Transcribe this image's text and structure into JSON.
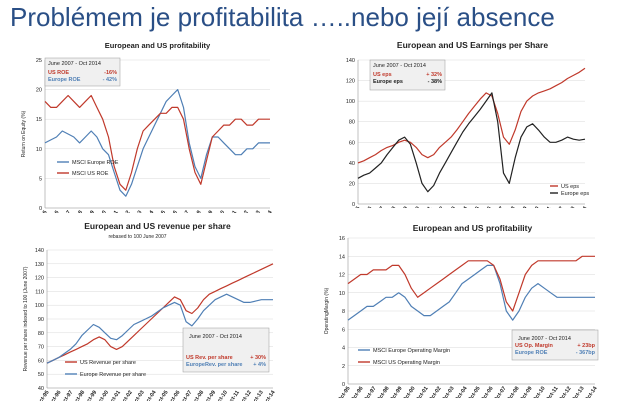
{
  "slide": {
    "title": "Problémem je profitabilita …..nebo její absence"
  },
  "colors": {
    "red": "#c0392b",
    "blue": "#4f7fb5",
    "dark": "#222222",
    "panel_bg": "#f0f0f0",
    "text": "#222222"
  },
  "chart_data": [
    {
      "type": "line",
      "title": "European and US profitability",
      "subtitle": "",
      "xlabel": "",
      "ylabel": "Return on Equity (%)",
      "ylim": [
        0,
        25
      ],
      "yticks": [
        0,
        5,
        10,
        15,
        20,
        25
      ],
      "x": [
        0,
        1,
        2,
        3,
        4,
        5,
        6,
        7,
        8,
        9,
        10,
        11,
        12,
        13,
        14,
        15,
        16,
        17,
        18,
        19,
        20,
        21,
        22,
        23,
        24,
        25,
        26,
        27,
        28,
        29,
        30,
        31,
        32,
        33,
        34,
        35,
        36,
        37,
        38,
        39
      ],
      "xticklabels": [
        "Oct-95",
        "Oct-96",
        "Oct-97",
        "Oct-98",
        "Oct-99",
        "Oct-00",
        "Oct-01",
        "Oct-02",
        "Oct-03",
        "Oct-04",
        "Oct-05",
        "Oct-06",
        "Oct-07",
        "Oct-08",
        "Oct-09",
        "Oct-10",
        "Oct-11",
        "Oct-12",
        "Oct-13",
        "Oct-14"
      ],
      "series": [
        {
          "name": "MSCI Europe ROE",
          "color": "blue",
          "values": [
            11,
            11.5,
            12,
            13,
            12.5,
            12,
            11,
            12,
            13,
            12,
            10,
            9,
            6,
            3,
            2,
            4,
            7,
            10,
            12,
            14,
            16,
            18,
            19,
            20,
            17,
            11,
            7,
            5,
            9,
            12,
            12,
            11,
            10,
            9,
            9,
            10,
            10,
            11,
            11,
            11
          ]
        },
        {
          "name": "MSCI US ROE",
          "color": "red",
          "values": [
            18,
            17,
            17,
            18,
            19,
            18,
            17,
            18,
            19,
            17,
            15,
            12,
            7,
            4,
            3,
            6,
            10,
            13,
            14,
            15,
            16,
            16,
            17,
            17,
            15,
            10,
            6,
            4,
            8,
            12,
            13,
            14,
            14,
            15,
            15,
            14,
            14,
            15,
            15,
            15
          ]
        }
      ],
      "annotation": {
        "period": "June 2007 - Oct 2014",
        "rows": [
          {
            "label": "US ROE",
            "value": "-16%",
            "color": "red"
          },
          {
            "label": "Europe ROE",
            "value": "- 42%",
            "color": "blue"
          }
        ]
      }
    },
    {
      "type": "line",
      "title": "European and US Earnings per Share",
      "subtitle": "",
      "xlabel": "",
      "ylabel": "",
      "ylim": [
        0,
        140
      ],
      "yticks": [
        0,
        20,
        40,
        60,
        80,
        100,
        120,
        140
      ],
      "x": [
        0,
        1,
        2,
        3,
        4,
        5,
        6,
        7,
        8,
        9,
        10,
        11,
        12,
        13,
        14,
        15,
        16,
        17,
        18,
        19,
        20,
        21,
        22,
        23,
        24,
        25,
        26,
        27,
        28,
        29,
        30,
        31,
        32,
        33,
        34,
        35,
        36,
        37,
        38,
        39
      ],
      "xticklabels": [
        "Oct-95",
        "Oct-96",
        "Oct-97",
        "Oct-98",
        "Oct-99",
        "Oct-00",
        "Oct-01",
        "Oct-02",
        "Oct-03",
        "Oct-04",
        "Oct-05",
        "Oct-06",
        "Oct-07",
        "Oct-08",
        "Oct-09",
        "Oct-10",
        "Oct-11",
        "Oct-12",
        "Oct-13",
        "Oct-14"
      ],
      "series": [
        {
          "name": "US eps",
          "color": "red",
          "values": [
            40,
            42,
            45,
            48,
            52,
            55,
            57,
            60,
            62,
            60,
            55,
            48,
            45,
            48,
            55,
            60,
            65,
            72,
            80,
            88,
            95,
            102,
            108,
            105,
            88,
            65,
            58,
            72,
            90,
            100,
            105,
            108,
            110,
            112,
            115,
            118,
            122,
            125,
            128,
            132
          ]
        },
        {
          "name": "Europe eps",
          "color": "dark",
          "values": [
            25,
            28,
            30,
            35,
            40,
            48,
            55,
            62,
            65,
            58,
            40,
            20,
            12,
            18,
            30,
            40,
            50,
            60,
            70,
            78,
            85,
            92,
            100,
            108,
            80,
            30,
            20,
            45,
            65,
            75,
            78,
            72,
            65,
            60,
            60,
            62,
            65,
            63,
            62,
            63
          ]
        }
      ],
      "annotation": {
        "period": "June 2007 - Oct 2014",
        "rows": [
          {
            "label": "US eps",
            "value": "+ 32%",
            "color": "red"
          },
          {
            "label": "Europe eps",
            "value": "- 38%",
            "color": "dark"
          }
        ]
      }
    },
    {
      "type": "line",
      "title": "European and US revenue per share",
      "subtitle": "rebased to 100 June 2007",
      "xlabel": "",
      "ylabel": "Revenue per share indexed to 100 (June 2007)",
      "ylim": [
        40,
        140
      ],
      "yticks": [
        40,
        50,
        60,
        70,
        80,
        90,
        100,
        110,
        120,
        130,
        140
      ],
      "x": [
        0,
        1,
        2,
        3,
        4,
        5,
        6,
        7,
        8,
        9,
        10,
        11,
        12,
        13,
        14,
        15,
        16,
        17,
        18,
        19,
        20,
        21,
        22,
        23,
        24,
        25,
        26,
        27,
        28,
        29,
        30,
        31,
        32,
        33,
        34,
        35,
        36,
        37,
        38,
        39
      ],
      "xticklabels": [
        "Oct-95",
        "Oct-96",
        "Oct-97",
        "Oct-98",
        "Oct-99",
        "Oct-00",
        "Oct-01",
        "Oct-02",
        "Oct-03",
        "Oct-04",
        "Oct-05",
        "Oct-06",
        "Oct-07",
        "Oct-08",
        "Oct-09",
        "Oct-10",
        "Oct-11",
        "Oct-12",
        "Oct-13",
        "Oct-14"
      ],
      "series": [
        {
          "name": "US Revenue per share",
          "color": "red",
          "values": [
            58,
            60,
            62,
            64,
            66,
            68,
            70,
            72,
            75,
            77,
            75,
            70,
            68,
            70,
            74,
            78,
            82,
            86,
            90,
            94,
            98,
            102,
            106,
            104,
            96,
            94,
            98,
            104,
            108,
            110,
            112,
            114,
            116,
            118,
            120,
            122,
            124,
            126,
            128,
            130
          ]
        },
        {
          "name": "Europe Revenue per share",
          "color": "blue",
          "values": [
            58,
            60,
            62,
            65,
            68,
            72,
            78,
            82,
            86,
            84,
            80,
            76,
            75,
            78,
            82,
            86,
            88,
            90,
            92,
            95,
            98,
            100,
            102,
            100,
            88,
            85,
            90,
            96,
            100,
            104,
            106,
            108,
            106,
            104,
            102,
            102,
            103,
            104,
            104,
            104
          ]
        }
      ],
      "annotation": {
        "period": "June 2007 - Oct 2014",
        "rows": [
          {
            "label": "US Rev. per share",
            "value": "+ 30%",
            "color": "red"
          },
          {
            "label": "EuropeRev. per share",
            "value": "+ 4%",
            "color": "blue"
          }
        ]
      }
    },
    {
      "type": "line",
      "title": "European and US profitability",
      "subtitle": "",
      "xlabel": "",
      "ylabel": "OperatingMargin (%)",
      "ylim": [
        0,
        16
      ],
      "yticks": [
        0,
        2,
        4,
        6,
        8,
        10,
        12,
        14,
        16
      ],
      "x": [
        0,
        1,
        2,
        3,
        4,
        5,
        6,
        7,
        8,
        9,
        10,
        11,
        12,
        13,
        14,
        15,
        16,
        17,
        18,
        19,
        20,
        21,
        22,
        23,
        24,
        25,
        26,
        27,
        28,
        29,
        30,
        31,
        32,
        33,
        34,
        35,
        36,
        37,
        38,
        39
      ],
      "xticklabels": [
        "Oct-95",
        "Oct-96",
        "Oct-97",
        "Oct-98",
        "Oct-99",
        "Oct-00",
        "Oct-01",
        "Oct-02",
        "Oct-03",
        "Oct-04",
        "Oct-05",
        "Oct-06",
        "Oct-07",
        "Oct-08",
        "Oct-09",
        "Oct-10",
        "Oct-11",
        "Oct-12",
        "Oct-13",
        "Oct-14"
      ],
      "series": [
        {
          "name": "MSCI Europe Operating Margin",
          "color": "blue",
          "values": [
            7,
            7.5,
            8,
            8.5,
            8.5,
            9,
            9.5,
            9.5,
            10,
            9.5,
            8.5,
            8,
            7.5,
            7.5,
            8,
            8.5,
            9,
            10,
            11,
            11.5,
            12,
            12.5,
            13,
            13,
            11,
            8,
            7,
            8,
            9.5,
            10.5,
            11,
            10.5,
            10,
            9.5,
            9.5,
            9.5,
            9.5,
            9.5,
            9.5,
            9.5
          ]
        },
        {
          "name": "MSCI US Operating Margin",
          "color": "red",
          "values": [
            11,
            11.5,
            12,
            12,
            12.5,
            12.5,
            12.5,
            13,
            13,
            12,
            10.5,
            9.5,
            10,
            10.5,
            11,
            11.5,
            12,
            12.5,
            13,
            13.5,
            13.5,
            13.5,
            13.5,
            13,
            11.5,
            9,
            8,
            10,
            12,
            13,
            13.5,
            13.5,
            13.5,
            13.5,
            13.5,
            13.5,
            13.5,
            14,
            14,
            14
          ]
        }
      ],
      "annotation": {
        "period": "June 2007 - Oct 2014",
        "rows": [
          {
            "label": "US Op. Margin",
            "value": "+ 23bp",
            "color": "red"
          },
          {
            "label": "Europe ROE",
            "value": "- 367bp",
            "color": "blue"
          }
        ]
      }
    }
  ]
}
